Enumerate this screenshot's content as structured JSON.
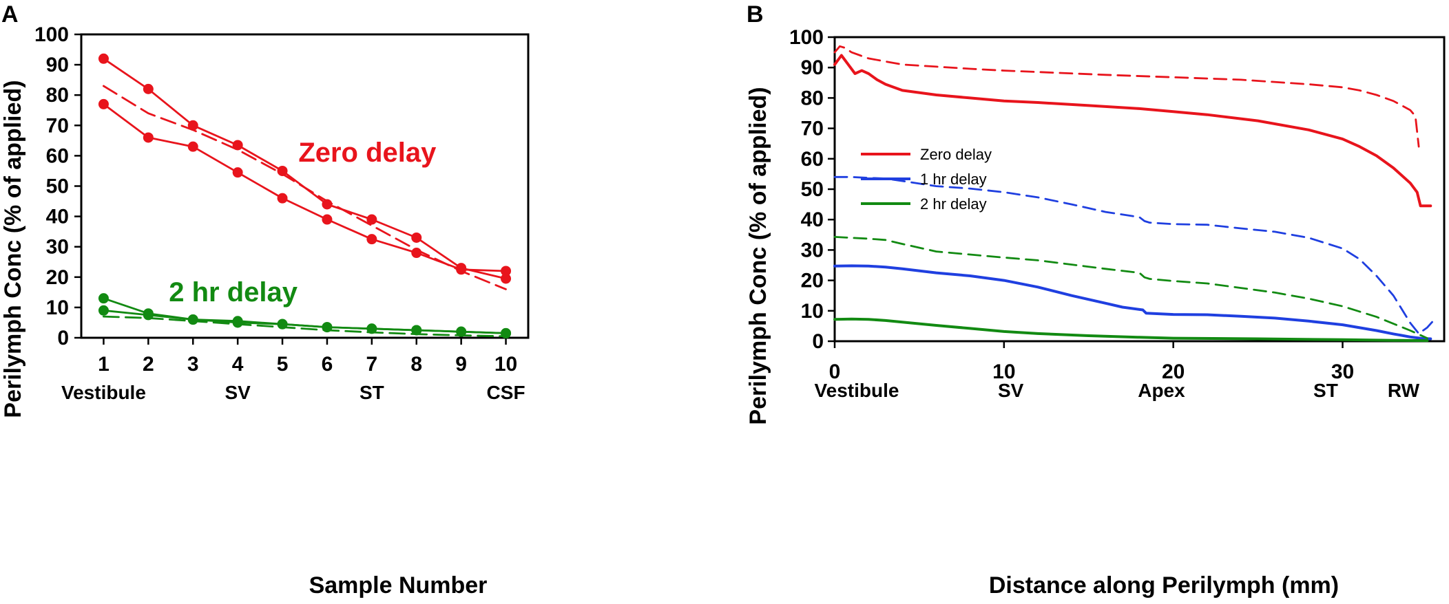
{
  "chart_data": [
    {
      "panel_label": "A",
      "type": "line",
      "xlabel": "Sample Number",
      "ylabel": "Perilymph Conc (% of applied)",
      "xlim": [
        0.5,
        10.5
      ],
      "ylim": [
        0,
        100
      ],
      "xticks": [
        1,
        2,
        3,
        4,
        5,
        6,
        7,
        8,
        9,
        10
      ],
      "yticks": [
        0,
        10,
        20,
        30,
        40,
        50,
        60,
        70,
        80,
        90,
        100
      ],
      "region_labels": [
        {
          "x": 1,
          "text": "Vestibule"
        },
        {
          "x": 4,
          "text": "SV"
        },
        {
          "x": 7,
          "text": "ST"
        },
        {
          "x": 10,
          "text": "CSF"
        }
      ],
      "annotations": [
        {
          "text": "Zero delay",
          "color": "#e8141c",
          "x": 6.9,
          "y": 58
        },
        {
          "text": "2 hr delay",
          "color": "#128a12",
          "x": 3.9,
          "y": 12
        }
      ],
      "series": [
        {
          "name": "Zero delay measured 1",
          "color": "#e8141c",
          "style": "solid",
          "markers": true,
          "x": [
            1,
            2,
            3,
            4,
            5,
            6,
            7,
            8,
            9,
            10
          ],
          "y": [
            92,
            82,
            70,
            63.5,
            55,
            44,
            39,
            33,
            23,
            19.5
          ]
        },
        {
          "name": "Zero delay measured 2",
          "color": "#e8141c",
          "style": "solid",
          "markers": true,
          "x": [
            1,
            2,
            3,
            4,
            5,
            6,
            7,
            8,
            9,
            10
          ],
          "y": [
            77,
            66,
            63,
            54.5,
            46,
            39,
            32.5,
            28,
            22.5,
            22
          ]
        },
        {
          "name": "Zero delay simulated",
          "color": "#e8141c",
          "style": "dashed",
          "markers": false,
          "x": [
            1,
            2,
            3,
            4,
            5,
            6,
            7,
            8,
            9,
            10
          ],
          "y": [
            83,
            74,
            68.5,
            62,
            54,
            45,
            37,
            29,
            22,
            16
          ]
        },
        {
          "name": "2 hr delay measured 1",
          "color": "#128a12",
          "style": "solid",
          "markers": true,
          "x": [
            1,
            2,
            3,
            4,
            5,
            6,
            7,
            8,
            9,
            10
          ],
          "y": [
            13,
            8,
            6,
            5.5,
            4.5,
            3.5,
            3,
            2.5,
            2,
            1.5
          ]
        },
        {
          "name": "2 hr delay measured 2",
          "color": "#128a12",
          "style": "solid",
          "markers": true,
          "x": [
            1,
            2,
            3,
            4,
            5,
            6,
            7,
            8,
            9,
            10
          ],
          "y": [
            9,
            7.5,
            6,
            5,
            4.5,
            3.5,
            3,
            2.5,
            2,
            1.5
          ]
        },
        {
          "name": "2 hr delay simulated",
          "color": "#128a12",
          "style": "dashed",
          "markers": false,
          "x": [
            1,
            2,
            3,
            4,
            5,
            6,
            7,
            8,
            9,
            10
          ],
          "y": [
            7,
            6.5,
            5.5,
            4.5,
            3.5,
            2.5,
            1.8,
            1.2,
            0.8,
            0.5
          ]
        }
      ]
    },
    {
      "panel_label": "B",
      "type": "line",
      "xlabel": "Distance along Perilymph (mm)",
      "ylabel": "Perilymph Conc (% of applied)",
      "xlim": [
        0,
        36
      ],
      "ylim": [
        0,
        100
      ],
      "xticks": [
        0,
        10,
        20,
        30
      ],
      "yticks": [
        0,
        10,
        20,
        30,
        40,
        50,
        60,
        70,
        80,
        90,
        100
      ],
      "region_labels": [
        {
          "x": 1.3,
          "text": "Vestibule"
        },
        {
          "x": 10.4,
          "text": "SV"
        },
        {
          "x": 19.3,
          "text": "Apex"
        },
        {
          "x": 29,
          "text": "ST"
        },
        {
          "x": 33.6,
          "text": "RW"
        }
      ],
      "legend": {
        "position": "upper-left",
        "entries": [
          {
            "label": "Zero delay",
            "color": "#e8141c"
          },
          {
            "label": "1 hr delay",
            "color": "#1f3fe0"
          },
          {
            "label": "2 hr delay",
            "color": "#128a12"
          }
        ]
      },
      "series": [
        {
          "name": "Zero delay solid",
          "color": "#e8141c",
          "style": "solid",
          "x": [
            0,
            0.4,
            0.8,
            1.2,
            1.6,
            2,
            2.5,
            3,
            4,
            6,
            8,
            10,
            12,
            15,
            18,
            20,
            22,
            25,
            28,
            30,
            31,
            32,
            33,
            34,
            34.4,
            34.6,
            35.2
          ],
          "y": [
            91,
            94,
            91,
            88,
            89,
            88,
            86,
            84.5,
            82.5,
            81,
            80,
            79,
            78.5,
            77.5,
            76.5,
            75.5,
            74.5,
            72.5,
            69.5,
            66.5,
            64,
            61,
            57,
            52,
            49,
            44.5,
            44.5
          ]
        },
        {
          "name": "Zero delay dashed",
          "color": "#e8141c",
          "style": "dashed",
          "x": [
            0,
            0.3,
            0.6,
            1,
            1.5,
            2,
            3,
            4,
            6,
            8,
            10,
            13,
            16,
            20,
            24,
            28,
            30,
            31,
            32,
            33,
            34,
            34.3,
            34.5
          ],
          "y": [
            95,
            97,
            96.5,
            95,
            94,
            93,
            92,
            91,
            90.3,
            89.6,
            89,
            88.3,
            87.6,
            86.8,
            86,
            84.5,
            83.5,
            82.5,
            81,
            79,
            76,
            74,
            64
          ]
        },
        {
          "name": "1 hr delay solid",
          "color": "#1f3fe0",
          "style": "solid",
          "x": [
            0,
            1,
            2,
            3,
            4,
            6,
            8,
            10,
            12,
            14,
            16,
            17,
            18.2,
            18.4,
            20,
            22,
            24,
            26,
            28,
            30,
            32,
            33,
            34,
            34.7,
            35.2
          ],
          "y": [
            24.7,
            24.8,
            24.7,
            24.4,
            23.8,
            22.5,
            21.5,
            20,
            17.8,
            15,
            12.5,
            11.2,
            10.3,
            9.2,
            8.8,
            8.7,
            8.2,
            7.6,
            6.6,
            5.4,
            3.5,
            2.4,
            1.4,
            0.9,
            0.8
          ]
        },
        {
          "name": "1 hr delay dashed",
          "color": "#1f3fe0",
          "style": "dashed",
          "x": [
            0,
            1,
            2,
            3,
            4,
            6,
            8,
            10,
            12,
            14,
            16,
            18,
            18.3,
            18.6,
            20,
            22,
            24,
            26,
            28,
            30,
            31,
            32,
            33,
            34,
            34.5,
            35,
            35.4
          ],
          "y": [
            54,
            54,
            53.7,
            53.5,
            52.7,
            51,
            50.2,
            49,
            47.3,
            45,
            42.5,
            40.8,
            39.5,
            39,
            38.5,
            38.3,
            37.1,
            36,
            34,
            30.5,
            27,
            21.5,
            15,
            6,
            2.5,
            4.5,
            7
          ]
        },
        {
          "name": "2 hr delay solid",
          "color": "#128a12",
          "style": "solid",
          "x": [
            0,
            1,
            2,
            3,
            4,
            6,
            8,
            10,
            12,
            15,
            18,
            20,
            25,
            30,
            33,
            35
          ],
          "y": [
            7.2,
            7.3,
            7.2,
            6.8,
            6.3,
            5.2,
            4.2,
            3.2,
            2.5,
            1.8,
            1.3,
            1,
            0.8,
            0.5,
            0.3,
            0.2
          ]
        },
        {
          "name": "2 hr delay dashed",
          "color": "#128a12",
          "style": "dashed",
          "x": [
            0,
            1,
            2,
            3,
            4,
            6,
            8,
            10,
            12,
            14,
            16,
            18,
            18.3,
            18.6,
            20,
            22,
            24,
            26,
            28,
            30,
            32,
            34,
            35
          ],
          "y": [
            34.3,
            34,
            33.7,
            33.3,
            32,
            29.5,
            28.5,
            27.5,
            26.6,
            25.2,
            23.8,
            22.5,
            21,
            20.5,
            19.8,
            19,
            17.5,
            16,
            14,
            11.5,
            8,
            3.5,
            1
          ]
        }
      ]
    }
  ]
}
